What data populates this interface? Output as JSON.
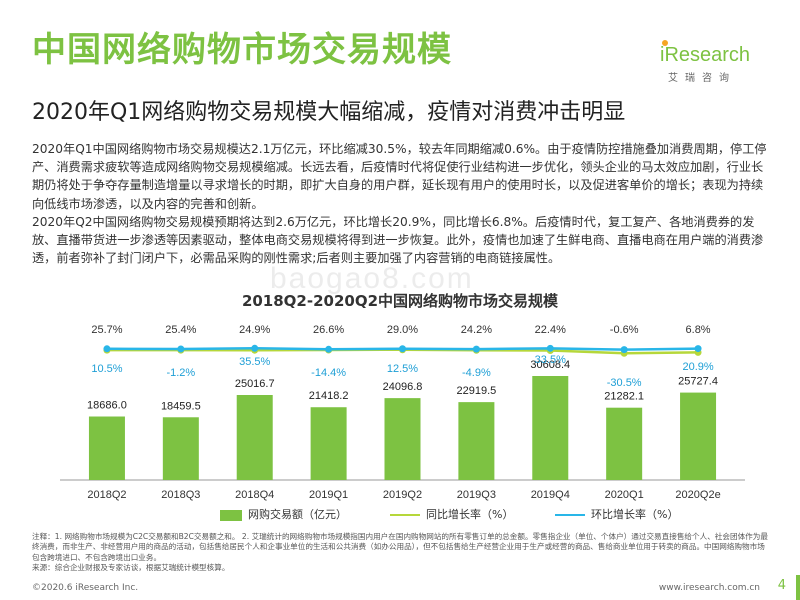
{
  "header": {
    "title": "中国网络购物市场交易规模",
    "subtitle": "2020年Q1网络购物交易规模大幅缩减，疫情对消费冲击明显",
    "logo_text": "iResearch",
    "logo_sub": "艾瑞咨询"
  },
  "body": {
    "paragraph1": "2020年Q1中国网络购物市场交易规模达2.1万亿元，环比缩减30.5%，较去年同期缩减0.6%。由于疫情防控措施叠加消费周期，停工停产、消费需求疲软等造成网络购物交易规模缩减。长远去看，后疫情时代将促使行业结构进一步优化，领头企业的马太效应加剧，行业长期仍将处于争夺存量制造增量以寻求增长的时期，即扩大自身的用户群，延长现有用户的使用时长，以及促进客单价的增长；表现为持续向低线市场渗透，以及内容的完善和创新。",
    "paragraph2": "2020年Q2中国网络购物交易规模预期将达到2.6万亿元，环比增长20.9%，同比增长6.8%。后疫情时代，复工复产、各地消费券的发放、直播带货进一步渗透等因素驱动，整体电商交易规模将得到进一步恢复。此外，疫情也加速了生鲜电商、直播电商在用户端的消费渗透，前者弥补了封门闭户下，必需品采购的刚性需求;后者则主要加强了内容营销的电商链接属性。",
    "watermark": "baogao8.com"
  },
  "chart_data": {
    "type": "bar",
    "title": "2018Q2-2020Q2中国网络购物市场交易规模",
    "categories": [
      "2018Q2",
      "2018Q3",
      "2018Q4",
      "2019Q1",
      "2019Q2",
      "2019Q3",
      "2019Q4",
      "2020Q1",
      "2020Q2e"
    ],
    "series": [
      {
        "name": "网购交易额（亿元）",
        "type": "bar",
        "values": [
          18686.0,
          18459.5,
          25016.7,
          21418.2,
          24096.8,
          22919.5,
          30608.4,
          21282.1,
          25727.4
        ],
        "labels": [
          "18686.0",
          "18459.5",
          "25016.7",
          "21418.2",
          "24096.8",
          "22919.5",
          "30608.4",
          "21282.1",
          "25727.4"
        ]
      },
      {
        "name": "同比增长率（%）",
        "type": "line",
        "values": [
          25.7,
          25.4,
          24.9,
          26.6,
          29.0,
          24.2,
          22.4,
          -0.6,
          6.8
        ],
        "labels": [
          "25.7%",
          "25.4%",
          "24.9%",
          "26.6%",
          "29.0%",
          "24.2%",
          "22.4%",
          "-0.6%",
          "6.8%"
        ]
      },
      {
        "name": "环比增长率（%）",
        "type": "line",
        "values": [
          10.5,
          -1.2,
          35.5,
          -14.4,
          12.5,
          -4.9,
          33.5,
          -30.5,
          20.9
        ],
        "labels": [
          "10.5%",
          "-1.2%",
          "35.5%",
          "-14.4%",
          "12.5%",
          "-4.9%",
          "33.5%",
          "-30.5%",
          "20.9%"
        ]
      }
    ],
    "colors": {
      "bar": "#7dc242",
      "yoy": "#b6d73a",
      "qoq": "#29b6e8"
    },
    "legend_position": "bottom"
  },
  "notes": {
    "line1": "注释：1. 网络购物市场规模为C2C交易额和B2C交易额之和。 2. 艾瑞统计的网络购物市场规模指国内用户在国内购物网站的所有零售订单的总金额。零售指企业（单位、个体户）通过交易直接售给个人、社会团体作为最终消费，而非生产、非经营用户用的商品的活动，包括售给居民个人和企事业单位的生活和公共消费（如办公用品），但不包括售给生产经营企业用于生产或经营的商品、售给商业单位用于转卖的商品。中国网络购物市场包含跨境进口、不包含跨境出口业务。",
    "line2": "来源：综合企业财报及专家访谈，根据艾瑞统计模型核算。"
  },
  "footer": {
    "copyright": "©2020.6 iResearch Inc.",
    "website": "www.iresearch.com.cn",
    "page_number": "4"
  }
}
